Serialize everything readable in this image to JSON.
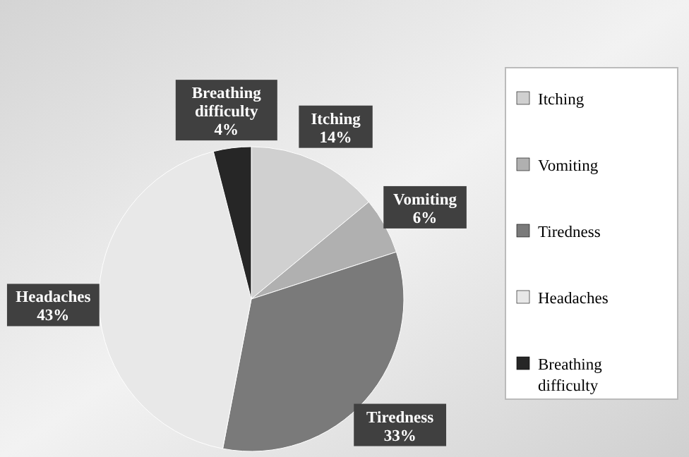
{
  "chart_data": {
    "type": "pie",
    "categories": [
      "Itching",
      "Vomiting",
      "Tiredness",
      "Headaches",
      "Breathing difficulty"
    ],
    "values": [
      14,
      6,
      33,
      43,
      4
    ],
    "value_labels": [
      "14%",
      "6%",
      "33%",
      "43%",
      "4%"
    ],
    "colors": [
      "#d0d0d0",
      "#b0b0b0",
      "#7a7a7a",
      "#e8e8e8",
      "#262626"
    ],
    "legend": "right"
  }
}
